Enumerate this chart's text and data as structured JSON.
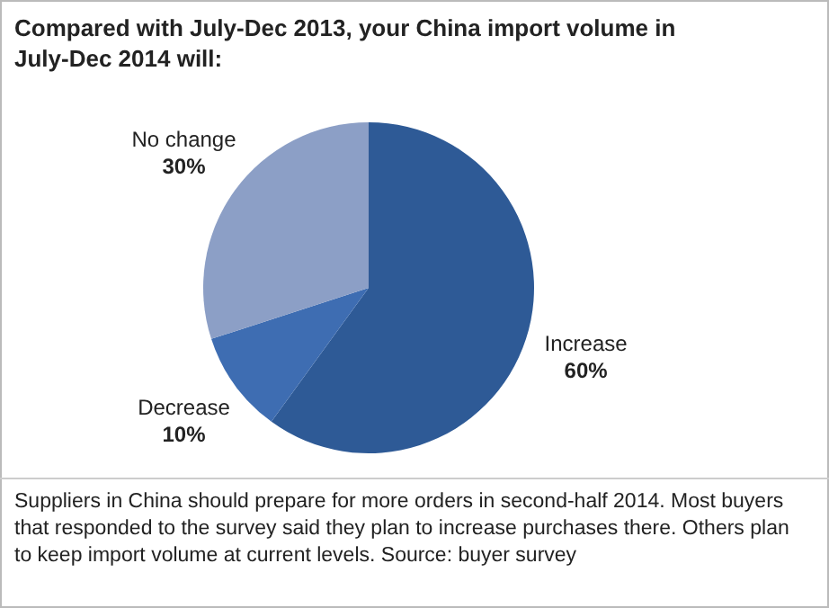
{
  "chart_data": {
    "type": "pie",
    "title": "Compared with July-Dec 2013, your China import volume in July-Dec 2014 will:",
    "categories": [
      "Increase",
      "Decrease",
      "No change"
    ],
    "values": [
      60,
      10,
      30
    ],
    "value_labels": [
      "60%",
      "10%",
      "30%"
    ],
    "colors": [
      "#2e5a96",
      "#3e6db2",
      "#8c9fc6"
    ],
    "annotations": [
      "Suppliers in China should prepare for more orders in second-half 2014. Most buyers that responded to the survey said they plan to increase purchases there. Others plan to keep import volume at current levels. Source: buyer survey"
    ]
  }
}
